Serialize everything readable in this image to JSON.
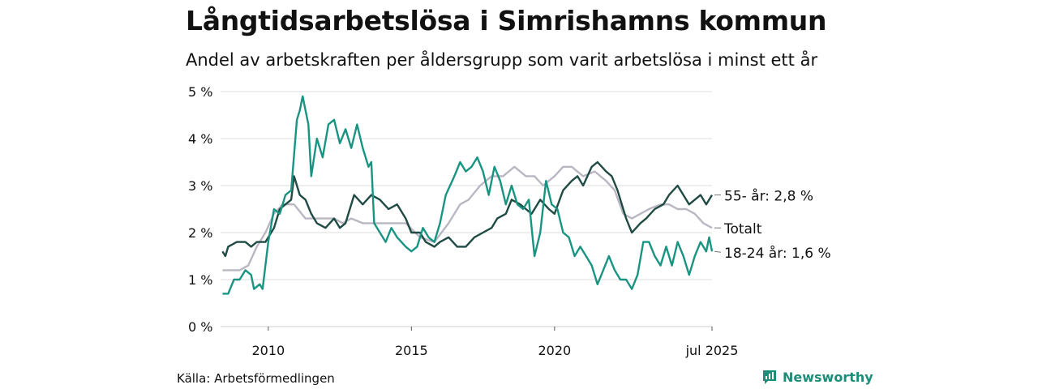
{
  "title": "Långtidsarbetslösa i Simrishamns kommun",
  "subtitle": "Andel av arbetskraften per åldersgrupp som varit arbetslösa i minst ett år",
  "source": "Källa: Arbetsförmedlingen",
  "logo": "Newsworthy",
  "chart_data": {
    "type": "line",
    "x_start": "2008-05",
    "x_end": "2025-07",
    "ylim": [
      0,
      5
    ],
    "yticks": [
      "0 %",
      "1 %",
      "2 %",
      "3 %",
      "4 %",
      "5 %"
    ],
    "xticks": [
      {
        "year": 2010,
        "label": "2010"
      },
      {
        "year": 2015,
        "label": "2015"
      },
      {
        "year": 2020,
        "label": "2020"
      },
      {
        "year": 2025.5,
        "label": "jul 2025"
      }
    ],
    "series": [
      {
        "key": "totalt",
        "name": "Totalt",
        "end_label": "Totalt",
        "color": "#bab7c3",
        "points": [
          [
            2008.4,
            1.2
          ],
          [
            2009.0,
            1.2
          ],
          [
            2009.3,
            1.3
          ],
          [
            2009.6,
            1.7
          ],
          [
            2009.9,
            2.0
          ],
          [
            2010.2,
            2.4
          ],
          [
            2010.5,
            2.6
          ],
          [
            2010.9,
            2.6
          ],
          [
            2011.3,
            2.3
          ],
          [
            2011.8,
            2.3
          ],
          [
            2012.3,
            2.3
          ],
          [
            2012.6,
            2.2
          ],
          [
            2012.9,
            2.3
          ],
          [
            2013.3,
            2.2
          ],
          [
            2013.8,
            2.2
          ],
          [
            2014.3,
            2.2
          ],
          [
            2014.8,
            2.2
          ],
          [
            2015.3,
            1.9
          ],
          [
            2015.8,
            1.8
          ],
          [
            2016.3,
            2.2
          ],
          [
            2016.7,
            2.6
          ],
          [
            2017.0,
            2.7
          ],
          [
            2017.4,
            3.0
          ],
          [
            2017.8,
            3.2
          ],
          [
            2018.2,
            3.2
          ],
          [
            2018.6,
            3.4
          ],
          [
            2019.0,
            3.2
          ],
          [
            2019.3,
            3.2
          ],
          [
            2019.6,
            3.0
          ],
          [
            2020.0,
            3.2
          ],
          [
            2020.3,
            3.4
          ],
          [
            2020.6,
            3.4
          ],
          [
            2021.0,
            3.2
          ],
          [
            2021.4,
            3.3
          ],
          [
            2021.8,
            3.1
          ],
          [
            2022.1,
            2.9
          ],
          [
            2022.4,
            2.4
          ],
          [
            2022.7,
            2.3
          ],
          [
            2023.0,
            2.4
          ],
          [
            2023.3,
            2.5
          ],
          [
            2023.7,
            2.6
          ],
          [
            2024.0,
            2.6
          ],
          [
            2024.3,
            2.5
          ],
          [
            2024.6,
            2.5
          ],
          [
            2024.9,
            2.4
          ],
          [
            2025.2,
            2.2
          ],
          [
            2025.5,
            2.1
          ]
        ]
      },
      {
        "key": "55",
        "name": "55- år",
        "end_label": "55- år: 2,8 %",
        "color": "#1f4b44",
        "points": [
          [
            2008.4,
            1.6
          ],
          [
            2008.5,
            1.5
          ],
          [
            2008.6,
            1.7
          ],
          [
            2008.9,
            1.8
          ],
          [
            2009.2,
            1.8
          ],
          [
            2009.4,
            1.7
          ],
          [
            2009.6,
            1.8
          ],
          [
            2009.9,
            1.8
          ],
          [
            2010.2,
            2.1
          ],
          [
            2010.4,
            2.5
          ],
          [
            2010.6,
            2.6
          ],
          [
            2010.8,
            2.7
          ],
          [
            2010.9,
            3.2
          ],
          [
            2011.1,
            2.8
          ],
          [
            2011.3,
            2.7
          ],
          [
            2011.5,
            2.4
          ],
          [
            2011.7,
            2.2
          ],
          [
            2012.0,
            2.1
          ],
          [
            2012.3,
            2.3
          ],
          [
            2012.5,
            2.1
          ],
          [
            2012.7,
            2.2
          ],
          [
            2013.0,
            2.8
          ],
          [
            2013.3,
            2.6
          ],
          [
            2013.6,
            2.8
          ],
          [
            2013.9,
            2.7
          ],
          [
            2014.2,
            2.5
          ],
          [
            2014.5,
            2.6
          ],
          [
            2014.8,
            2.3
          ],
          [
            2015.0,
            2.0
          ],
          [
            2015.3,
            2.0
          ],
          [
            2015.5,
            1.8
          ],
          [
            2015.8,
            1.7
          ],
          [
            2016.0,
            1.8
          ],
          [
            2016.3,
            1.9
          ],
          [
            2016.6,
            1.7
          ],
          [
            2016.9,
            1.7
          ],
          [
            2017.2,
            1.9
          ],
          [
            2017.5,
            2.0
          ],
          [
            2017.8,
            2.1
          ],
          [
            2018.0,
            2.3
          ],
          [
            2018.3,
            2.4
          ],
          [
            2018.5,
            2.7
          ],
          [
            2018.8,
            2.6
          ],
          [
            2019.0,
            2.5
          ],
          [
            2019.2,
            2.4
          ],
          [
            2019.5,
            2.7
          ],
          [
            2019.8,
            2.5
          ],
          [
            2020.0,
            2.4
          ],
          [
            2020.3,
            2.9
          ],
          [
            2020.6,
            3.1
          ],
          [
            2020.8,
            3.2
          ],
          [
            2021.0,
            3.0
          ],
          [
            2021.3,
            3.4
          ],
          [
            2021.5,
            3.5
          ],
          [
            2021.8,
            3.3
          ],
          [
            2022.0,
            3.2
          ],
          [
            2022.2,
            2.9
          ],
          [
            2022.5,
            2.3
          ],
          [
            2022.7,
            2.0
          ],
          [
            2023.0,
            2.2
          ],
          [
            2023.2,
            2.3
          ],
          [
            2023.5,
            2.5
          ],
          [
            2023.8,
            2.6
          ],
          [
            2024.0,
            2.8
          ],
          [
            2024.3,
            3.0
          ],
          [
            2024.5,
            2.8
          ],
          [
            2024.7,
            2.6
          ],
          [
            2024.9,
            2.7
          ],
          [
            2025.1,
            2.8
          ],
          [
            2025.3,
            2.6
          ],
          [
            2025.5,
            2.8
          ]
        ]
      },
      {
        "key": "18-24",
        "name": "18-24 år",
        "end_label": "18-24 år: 1,6 %",
        "color": "#1a9482",
        "points": [
          [
            2008.4,
            0.7
          ],
          [
            2008.6,
            0.7
          ],
          [
            2008.8,
            1.0
          ],
          [
            2009.0,
            1.0
          ],
          [
            2009.2,
            1.2
          ],
          [
            2009.4,
            1.1
          ],
          [
            2009.5,
            0.8
          ],
          [
            2009.7,
            0.9
          ],
          [
            2009.8,
            0.8
          ],
          [
            2010.0,
            1.8
          ],
          [
            2010.2,
            2.5
          ],
          [
            2010.4,
            2.4
          ],
          [
            2010.6,
            2.8
          ],
          [
            2010.8,
            2.9
          ],
          [
            2011.0,
            4.4
          ],
          [
            2011.1,
            4.6
          ],
          [
            2011.2,
            4.9
          ],
          [
            2011.4,
            4.3
          ],
          [
            2011.5,
            3.2
          ],
          [
            2011.7,
            4.0
          ],
          [
            2011.9,
            3.6
          ],
          [
            2012.1,
            4.3
          ],
          [
            2012.3,
            4.4
          ],
          [
            2012.5,
            3.9
          ],
          [
            2012.7,
            4.2
          ],
          [
            2012.9,
            3.8
          ],
          [
            2013.1,
            4.3
          ],
          [
            2013.3,
            3.8
          ],
          [
            2013.5,
            3.4
          ],
          [
            2013.6,
            3.5
          ],
          [
            2013.7,
            2.2
          ],
          [
            2013.9,
            2.0
          ],
          [
            2014.1,
            1.8
          ],
          [
            2014.3,
            2.1
          ],
          [
            2014.5,
            1.9
          ],
          [
            2014.8,
            1.7
          ],
          [
            2015.0,
            1.6
          ],
          [
            2015.2,
            1.7
          ],
          [
            2015.4,
            2.1
          ],
          [
            2015.6,
            1.9
          ],
          [
            2015.8,
            1.8
          ],
          [
            2016.0,
            2.2
          ],
          [
            2016.2,
            2.8
          ],
          [
            2016.5,
            3.2
          ],
          [
            2016.7,
            3.5
          ],
          [
            2016.9,
            3.3
          ],
          [
            2017.1,
            3.4
          ],
          [
            2017.3,
            3.6
          ],
          [
            2017.5,
            3.3
          ],
          [
            2017.7,
            2.8
          ],
          [
            2017.9,
            3.4
          ],
          [
            2018.1,
            3.1
          ],
          [
            2018.3,
            2.6
          ],
          [
            2018.5,
            3.0
          ],
          [
            2018.7,
            2.6
          ],
          [
            2018.9,
            2.5
          ],
          [
            2019.1,
            2.7
          ],
          [
            2019.3,
            1.5
          ],
          [
            2019.5,
            2.0
          ],
          [
            2019.7,
            3.1
          ],
          [
            2019.9,
            2.6
          ],
          [
            2020.1,
            2.5
          ],
          [
            2020.3,
            2.0
          ],
          [
            2020.5,
            1.9
          ],
          [
            2020.7,
            1.5
          ],
          [
            2020.9,
            1.7
          ],
          [
            2021.1,
            1.5
          ],
          [
            2021.3,
            1.3
          ],
          [
            2021.5,
            0.9
          ],
          [
            2021.7,
            1.2
          ],
          [
            2021.9,
            1.5
          ],
          [
            2022.1,
            1.2
          ],
          [
            2022.3,
            1.0
          ],
          [
            2022.5,
            1.0
          ],
          [
            2022.7,
            0.8
          ],
          [
            2022.9,
            1.1
          ],
          [
            2023.1,
            1.8
          ],
          [
            2023.3,
            1.8
          ],
          [
            2023.5,
            1.5
          ],
          [
            2023.7,
            1.3
          ],
          [
            2023.9,
            1.7
          ],
          [
            2024.1,
            1.3
          ],
          [
            2024.3,
            1.8
          ],
          [
            2024.5,
            1.5
          ],
          [
            2024.7,
            1.1
          ],
          [
            2024.9,
            1.5
          ],
          [
            2025.1,
            1.8
          ],
          [
            2025.3,
            1.6
          ],
          [
            2025.4,
            1.9
          ],
          [
            2025.5,
            1.6
          ]
        ]
      }
    ]
  }
}
